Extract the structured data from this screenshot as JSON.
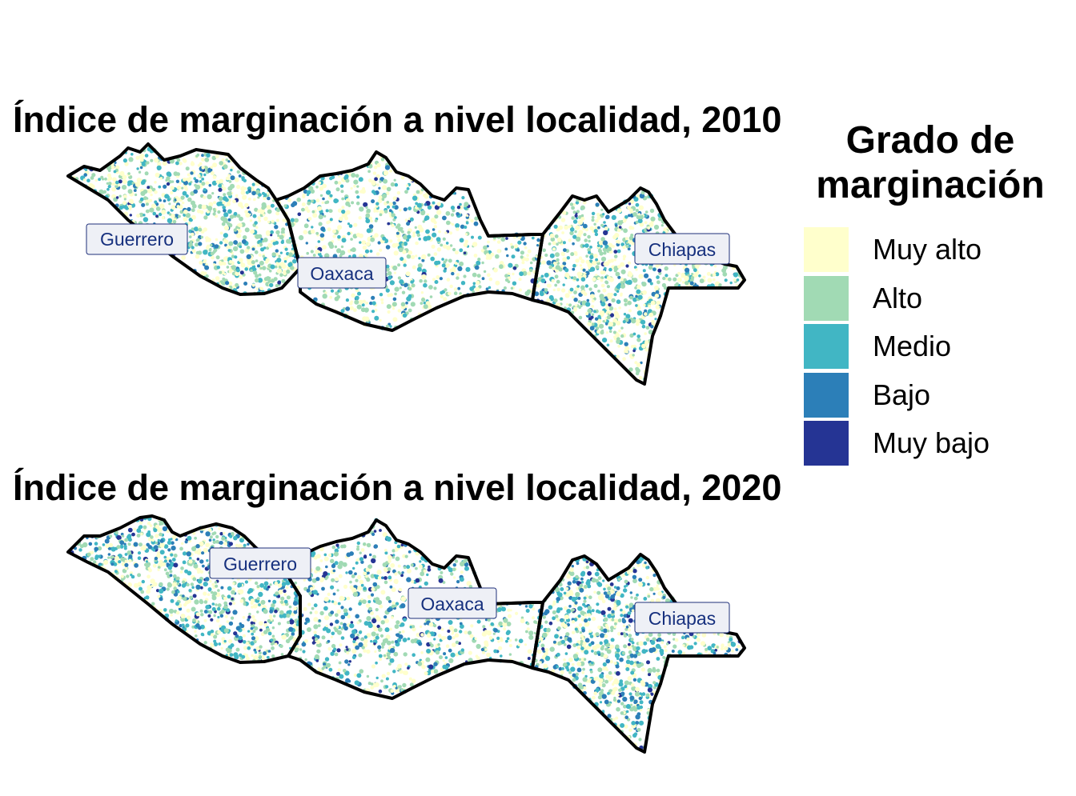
{
  "maps": [
    {
      "title": "Índice de marginación a nivel localidad, 2010",
      "labels": {
        "guerrero": "Guerrero",
        "oaxaca": "Oaxaca",
        "chiapas": "Chiapas"
      }
    },
    {
      "title": "Índice de marginación a nivel localidad, 2020",
      "labels": {
        "guerrero": "Guerrero",
        "oaxaca": "Oaxaca",
        "chiapas": "Chiapas"
      }
    }
  ],
  "legend": {
    "title": "Grado de marginación",
    "items": [
      {
        "label": "Muy alto",
        "color": "#ffffcc"
      },
      {
        "label": "Alto",
        "color": "#a1dab4"
      },
      {
        "label": "Medio",
        "color": "#41b6c4"
      },
      {
        "label": "Bajo",
        "color": "#2c7fb8"
      },
      {
        "label": "Muy bajo",
        "color": "#253494"
      }
    ]
  }
}
